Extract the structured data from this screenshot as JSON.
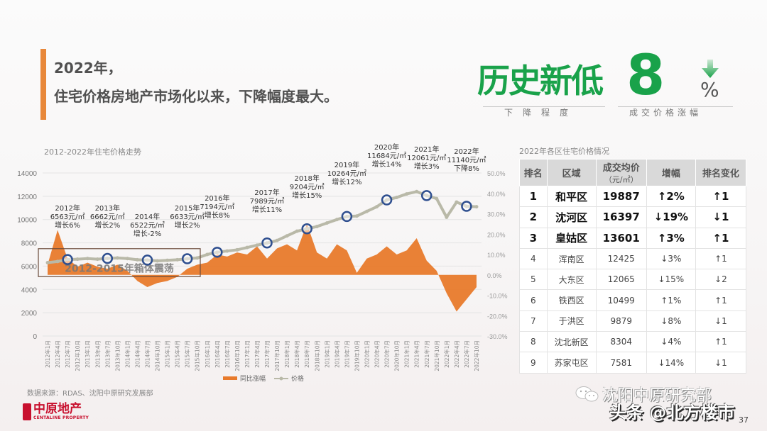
{
  "headline": {
    "line1": "2022年，",
    "line2": "住宅价格房地产市场化以来，下降幅度最大。"
  },
  "hero": {
    "title": "历史新低",
    "number": "8",
    "unit": "%",
    "arrow": "down-arrow-icon",
    "caption_left": "下降程度",
    "caption_right": "成交价格涨幅",
    "color": "#19a24a"
  },
  "chart_data": {
    "type": "line",
    "title": "2012-2022年住宅价格走势",
    "left_axis": {
      "ticks": [
        0,
        2000,
        4000,
        6000,
        8000,
        10000,
        12000,
        14000
      ],
      "range": [
        0,
        14000
      ],
      "label": "价格"
    },
    "right_axis": {
      "ticks": [
        "50.0%",
        "40.0%",
        "30.0%",
        "20.0%",
        "10.0%",
        "0.0%",
        "-10.0%",
        "-20.0%",
        "-30.0%"
      ],
      "range": [
        -30,
        50
      ],
      "label": "同比涨幅"
    },
    "x_labels": [
      "2012年1月",
      "2012年4月",
      "2012年7月",
      "2012年10月",
      "2013年1月",
      "2013年4月",
      "2013年7月",
      "2013年10月",
      "2014年1月",
      "2014年4月",
      "2014年7月",
      "2014年10月",
      "2015年1月",
      "2015年4月",
      "2015年7月",
      "2015年10月",
      "2016年1月",
      "2016年4月",
      "2016年7月",
      "2016年10月",
      "2017年1月",
      "2017年4月",
      "2017年7月",
      "2017年10月",
      "2018年1月",
      "2018年4月",
      "2018年7月",
      "2018年10月",
      "2019年1月",
      "2019年4月",
      "2019年7月",
      "2019年10月",
      "2020年1月",
      "2020年4月",
      "2020年7月",
      "2020年10月",
      "2021年1月",
      "2021年4月",
      "2021年7月",
      "2021年10月",
      "2022年1月",
      "2022年4月",
      "2022年7月",
      "2022年10月"
    ],
    "series": [
      {
        "name": "价格",
        "type": "line",
        "color": "#b9b9a8",
        "axis": "left",
        "values": [
          6300,
          6400,
          6563,
          6600,
          6650,
          6600,
          6662,
          6700,
          6650,
          6550,
          6522,
          6450,
          6500,
          6550,
          6633,
          6700,
          7000,
          7194,
          7300,
          7400,
          7600,
          7800,
          7989,
          8200,
          8600,
          9000,
          9204,
          9400,
          9700,
          10000,
          10264,
          10300,
          10700,
          11100,
          11684,
          11900,
          12200,
          12400,
          12061,
          11800,
          10200,
          11500,
          11140,
          11100
        ]
      },
      {
        "name": "同比涨幅",
        "type": "area",
        "color": "#e87a2b",
        "axis": "right",
        "unit": "%",
        "values": [
          5,
          22,
          8,
          4,
          6,
          4,
          3,
          5,
          2,
          -3,
          -6,
          -4,
          -3,
          -1,
          3,
          5,
          6,
          10,
          9,
          11,
          10,
          14,
          8,
          13,
          15,
          12,
          25,
          11,
          8,
          15,
          12,
          1,
          8,
          10,
          14,
          10,
          12,
          18,
          7,
          2,
          -9,
          -18,
          -12,
          -6
        ]
      }
    ],
    "annotations": [
      {
        "year": "2012年",
        "price": "6563元/㎡",
        "change": "增长6%"
      },
      {
        "year": "2013年",
        "price": "6662元/㎡",
        "change": "增长2%"
      },
      {
        "year": "2014年",
        "price": "6522元/㎡",
        "change": "增长-2%"
      },
      {
        "year": "2015年",
        "price": "6633元/㎡",
        "change": "增长2%"
      },
      {
        "year": "2016年",
        "price": "7194元/㎡",
        "change": "增长8%"
      },
      {
        "year": "2017年",
        "price": "7989元/㎡",
        "change": "增长11%"
      },
      {
        "year": "2018年",
        "price": "9204元/㎡",
        "change": "增长15%"
      },
      {
        "year": "2019年",
        "price": "10264元/㎡",
        "change": "增长12%"
      },
      {
        "year": "2020年",
        "price": "11684元/㎡",
        "change": "增长14%"
      },
      {
        "year": "2021年",
        "price": "12061元/㎡",
        "change": "增长3%"
      },
      {
        "year": "2022年",
        "price": "11140元/㎡",
        "change": "下降8%"
      }
    ],
    "box_label": "2012-2015年箱体震荡",
    "legend": [
      {
        "label": "同比涨幅",
        "type": "area",
        "color": "#e87a2b"
      },
      {
        "label": "价格",
        "type": "line-marker",
        "color": "#b9b9a8"
      }
    ],
    "legend_position": "bottom",
    "grid": true
  },
  "table": {
    "title": "2022年各区住宅价格情况",
    "headers": [
      "排名",
      "区域",
      "成交均价",
      "增幅",
      "排名变化"
    ],
    "header_sub": "（元/㎡）",
    "rows": [
      {
        "rank": "1",
        "district": "和平区",
        "price": "19887",
        "change": "↑2%",
        "change_dir": "up",
        "rank_change": "↑1",
        "rank_dir": "up",
        "bold": true
      },
      {
        "rank": "2",
        "district": "沈河区",
        "price": "16397",
        "change": "↓19%",
        "change_dir": "down",
        "rank_change": "↓1",
        "rank_dir": "down",
        "bold": true
      },
      {
        "rank": "3",
        "district": "皇姑区",
        "price": "13601",
        "change": "↑3%",
        "change_dir": "up",
        "rank_change": "↑1",
        "rank_dir": "up",
        "bold": true
      },
      {
        "rank": "4",
        "district": "浑南区",
        "price": "12425",
        "change": "↓3%",
        "change_dir": "down",
        "rank_change": "↑1",
        "rank_dir": "up",
        "bold": false
      },
      {
        "rank": "5",
        "district": "大东区",
        "price": "12065",
        "change": "↓15%",
        "change_dir": "down",
        "rank_change": "↓2",
        "rank_dir": "down",
        "bold": false
      },
      {
        "rank": "6",
        "district": "铁西区",
        "price": "10499",
        "change": "↑1%",
        "change_dir": "up",
        "rank_change": "↑1",
        "rank_dir": "up",
        "bold": false
      },
      {
        "rank": "7",
        "district": "于洪区",
        "price": "9879",
        "change": "↓8%",
        "change_dir": "down",
        "rank_change": "↓1",
        "rank_dir": "down",
        "bold": false
      },
      {
        "rank": "8",
        "district": "沈北新区",
        "price": "8304",
        "change": "↓4%",
        "change_dir": "down",
        "rank_change": "↑1",
        "rank_dir": "up",
        "bold": false
      },
      {
        "rank": "9",
        "district": "苏家屯区",
        "price": "7581",
        "change": "↓14%",
        "change_dir": "down",
        "rank_change": "↓1",
        "rank_dir": "down",
        "bold": false
      }
    ]
  },
  "footer": {
    "source": "数据来源：RDAS、沈阳中原研究发展部",
    "logo_cn": "中原地产",
    "logo_en": "CENTALINE PROPERTY",
    "watermark_account": "沈阳中原研究部",
    "watermark_site": "头条 @北方楼市",
    "page_number": "37"
  }
}
